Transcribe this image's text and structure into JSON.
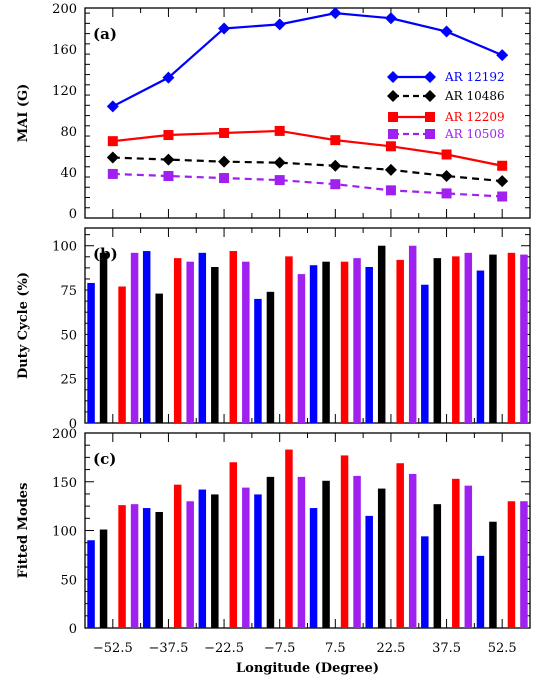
{
  "chart_data": [
    {
      "panel_label": "(a)",
      "type": "line",
      "ylabel": "MAI (G)",
      "x": [
        -52.5,
        -37.5,
        -22.5,
        -7.5,
        7.5,
        22.5,
        37.5,
        52.5
      ],
      "xlim": [
        -60,
        60
      ],
      "ylim": [
        -5,
        200
      ],
      "yticks": [
        0,
        40,
        80,
        120,
        160,
        200
      ],
      "legend_position": "right",
      "series": [
        {
          "name": "AR 12192",
          "values": [
            104,
            132,
            180,
            184,
            195,
            190,
            177,
            154
          ],
          "color": "#0000ff",
          "marker": "diamond",
          "linestyle": "solid"
        },
        {
          "name": "AR 10486",
          "values": [
            54,
            52,
            50,
            49,
            46,
            42,
            36,
            31
          ],
          "color": "#000000",
          "marker": "diamond",
          "linestyle": "dashed"
        },
        {
          "name": "AR 12209",
          "values": [
            70,
            76,
            78,
            80,
            71,
            65,
            57,
            46
          ],
          "color": "#ff0000",
          "marker": "square",
          "linestyle": "solid"
        },
        {
          "name": "AR 10508",
          "values": [
            38,
            36,
            34,
            32,
            28,
            22,
            19,
            16
          ],
          "color": "#a020f0",
          "marker": "square",
          "linestyle": "dashed"
        }
      ]
    },
    {
      "panel_label": "(b)",
      "type": "bar",
      "ylabel": "Duty Cycle (%)",
      "categories": [
        -52.5,
        -37.5,
        -22.5,
        -7.5,
        7.5,
        22.5,
        37.5,
        52.5
      ],
      "xlim": [
        -60,
        60
      ],
      "ylim": [
        0,
        110
      ],
      "yticks": [
        0,
        25,
        50,
        75,
        100
      ],
      "series": [
        {
          "values": [
            79,
            97,
            96,
            70,
            89,
            88,
            78,
            86
          ],
          "color": "#0000ff"
        },
        {
          "values": [
            96,
            73,
            88,
            74,
            91,
            100,
            93,
            95
          ],
          "color": "#000000"
        },
        {
          "values": [
            77,
            93,
            97,
            94,
            91,
            92,
            94,
            96
          ],
          "color": "#ff0000"
        },
        {
          "values": [
            96,
            91,
            91,
            84,
            93,
            100,
            96,
            95
          ],
          "color": "#a020f0"
        }
      ]
    },
    {
      "panel_label": "(c)",
      "type": "bar",
      "ylabel": "Fitted Modes",
      "xlabel": "Longitude (Degree)",
      "categories": [
        -52.5,
        -37.5,
        -22.5,
        -7.5,
        7.5,
        22.5,
        37.5,
        52.5
      ],
      "category_labels": [
        "-52.5",
        "-37.5",
        "-22.5",
        "-7.5",
        "7.5",
        "22.5",
        "37.5",
        "52.5"
      ],
      "xlim": [
        -60,
        60
      ],
      "ylim": [
        0,
        200
      ],
      "yticks": [
        0,
        50,
        100,
        150,
        200
      ],
      "series": [
        {
          "values": [
            90,
            123,
            142,
            137,
            123,
            115,
            94,
            74
          ],
          "color": "#0000ff"
        },
        {
          "values": [
            101,
            119,
            137,
            155,
            151,
            143,
            127,
            109
          ],
          "color": "#000000"
        },
        {
          "values": [
            126,
            147,
            170,
            183,
            177,
            169,
            153,
            130
          ],
          "color": "#ff0000"
        },
        {
          "values": [
            127,
            130,
            144,
            155,
            156,
            158,
            146,
            130
          ],
          "color": "#a020f0"
        }
      ]
    }
  ]
}
